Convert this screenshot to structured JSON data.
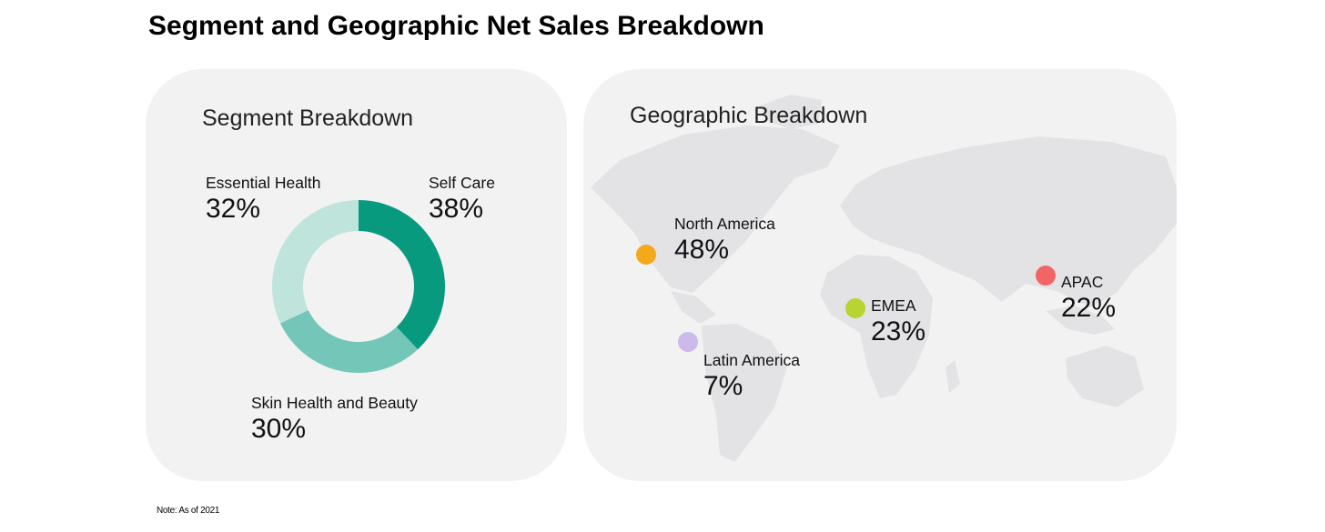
{
  "title": "Segment and Geographic Net Sales Breakdown",
  "note": "Note: As of 2021",
  "chart_data": [
    {
      "type": "pie",
      "title": "Segment Breakdown",
      "categories": [
        "Self Care",
        "Skin Health and Beauty",
        "Essential Health"
      ],
      "values": [
        38,
        30,
        32
      ],
      "labels": [
        "38%",
        "30%",
        "32%"
      ],
      "colors": [
        "#079a7f",
        "#73c6b8",
        "#bfe4dc"
      ]
    },
    {
      "type": "map",
      "title": "Geographic Breakdown",
      "categories": [
        "North America",
        "Latin America",
        "EMEA",
        "APAC"
      ],
      "values": [
        48,
        7,
        23,
        22
      ],
      "labels": [
        "48%",
        "7%",
        "23%",
        "22%"
      ],
      "colors": [
        "#f5a81c",
        "#cbbaea",
        "#b8d433",
        "#f26565"
      ]
    }
  ]
}
